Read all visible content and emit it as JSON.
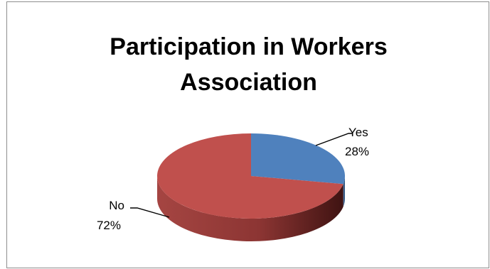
{
  "chart_data": {
    "type": "pie",
    "title_lines": [
      "Participation in Workers",
      "Association"
    ],
    "categories": [
      "Yes",
      "No"
    ],
    "values": [
      28,
      72
    ],
    "percent_labels": [
      "28%",
      "72%"
    ],
    "colors": [
      "#4f81bd",
      "#c0504d"
    ],
    "side_colors": [
      "#3a6593",
      "#8c3533"
    ],
    "style": "3d-exploded-off"
  }
}
